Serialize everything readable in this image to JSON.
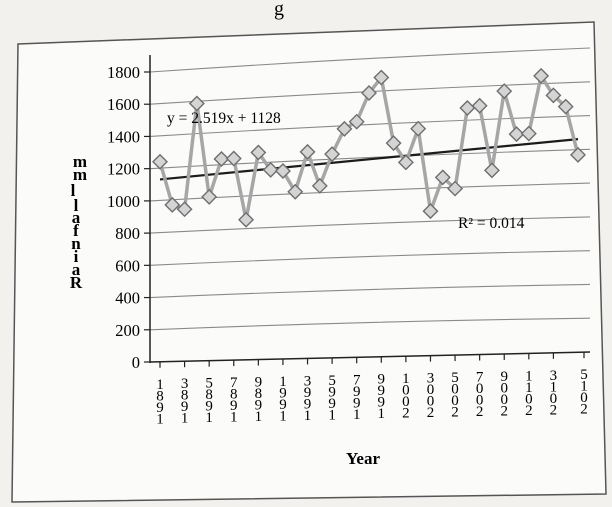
{
  "header_fragment": "g",
  "chart_data": {
    "type": "line",
    "title": "",
    "xlabel": "Year",
    "ylabel": "Rainfall mm",
    "ylabel_printed": "R a i n f a l l   m m",
    "ylim": [
      0,
      1800
    ],
    "yticks": [
      "0",
      "200",
      "400",
      "600",
      "800",
      "1000",
      "1200",
      "1400",
      "1600",
      "1800"
    ],
    "grid": true,
    "x_tick_labels": [
      "1981",
      "1983",
      "1985",
      "1987",
      "1989",
      "1991",
      "1993",
      "1995",
      "1997",
      "1999",
      "2001",
      "2003",
      "2005",
      "2007",
      "2009",
      "2011",
      "2013",
      "2015"
    ],
    "x": [
      1981,
      1982,
      1983,
      1984,
      1985,
      1986,
      1987,
      1988,
      1989,
      1990,
      1991,
      1992,
      1993,
      1994,
      1995,
      1996,
      1997,
      1998,
      1999,
      2000,
      2001,
      2002,
      2003,
      2004,
      2005,
      2006,
      2007,
      2008,
      2009,
      2010,
      2011,
      2012,
      2013,
      2014,
      2015
    ],
    "series": [
      {
        "name": "",
        "color": "#a9a9a9",
        "marker": "diamond",
        "values": [
          1240,
          970,
          940,
          1590,
          1010,
          1240,
          1240,
          860,
          1270,
          1160,
          1150,
          1020,
          1260,
          1050,
          1240,
          1390,
          1430,
          1600,
          1690,
          1290,
          1170,
          1370,
          870,
          1070,
          1000,
          1480,
          1490,
          1100,
          1570,
          1310,
          1310,
          1650,
          1530,
          1460,
          1170
        ]
      }
    ],
    "trendline": {
      "type": "linear",
      "equation": "y = 2.519x + 1128",
      "r_squared": "R² = 0.014",
      "slope": 2.519,
      "intercept": 1128,
      "color": "#1c1c1c"
    }
  }
}
